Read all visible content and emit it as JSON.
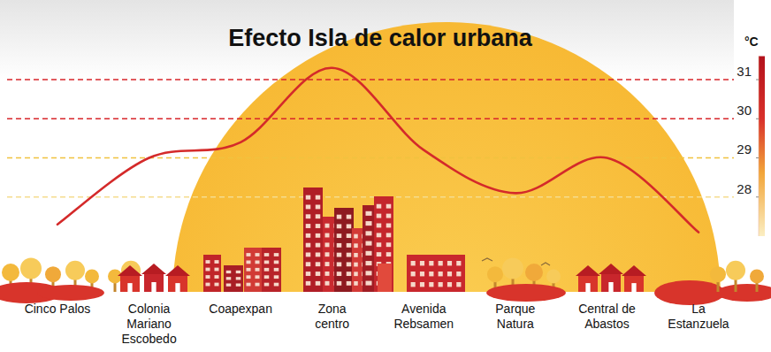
{
  "chart_data": {
    "type": "line",
    "title": "Efecto Isla de calor urbana",
    "ylabel": "°C",
    "categories": [
      "Cinco Palos",
      "Colonia\nMariano\nEscobedo",
      "Coapexpan",
      "Zona\ncentro",
      "Avenida\nRebsamen",
      "Parque\nNatura",
      "Central de\nAbastos",
      "La\nEstanzuela"
    ],
    "values": [
      27.3,
      29.0,
      29.4,
      31.3,
      29.2,
      28.1,
      29.0,
      27.1
    ],
    "color": "#d42a2a",
    "ylim": [
      27,
      31.6
    ],
    "yticks": [
      28,
      29,
      30,
      31
    ],
    "grid": true
  }
}
